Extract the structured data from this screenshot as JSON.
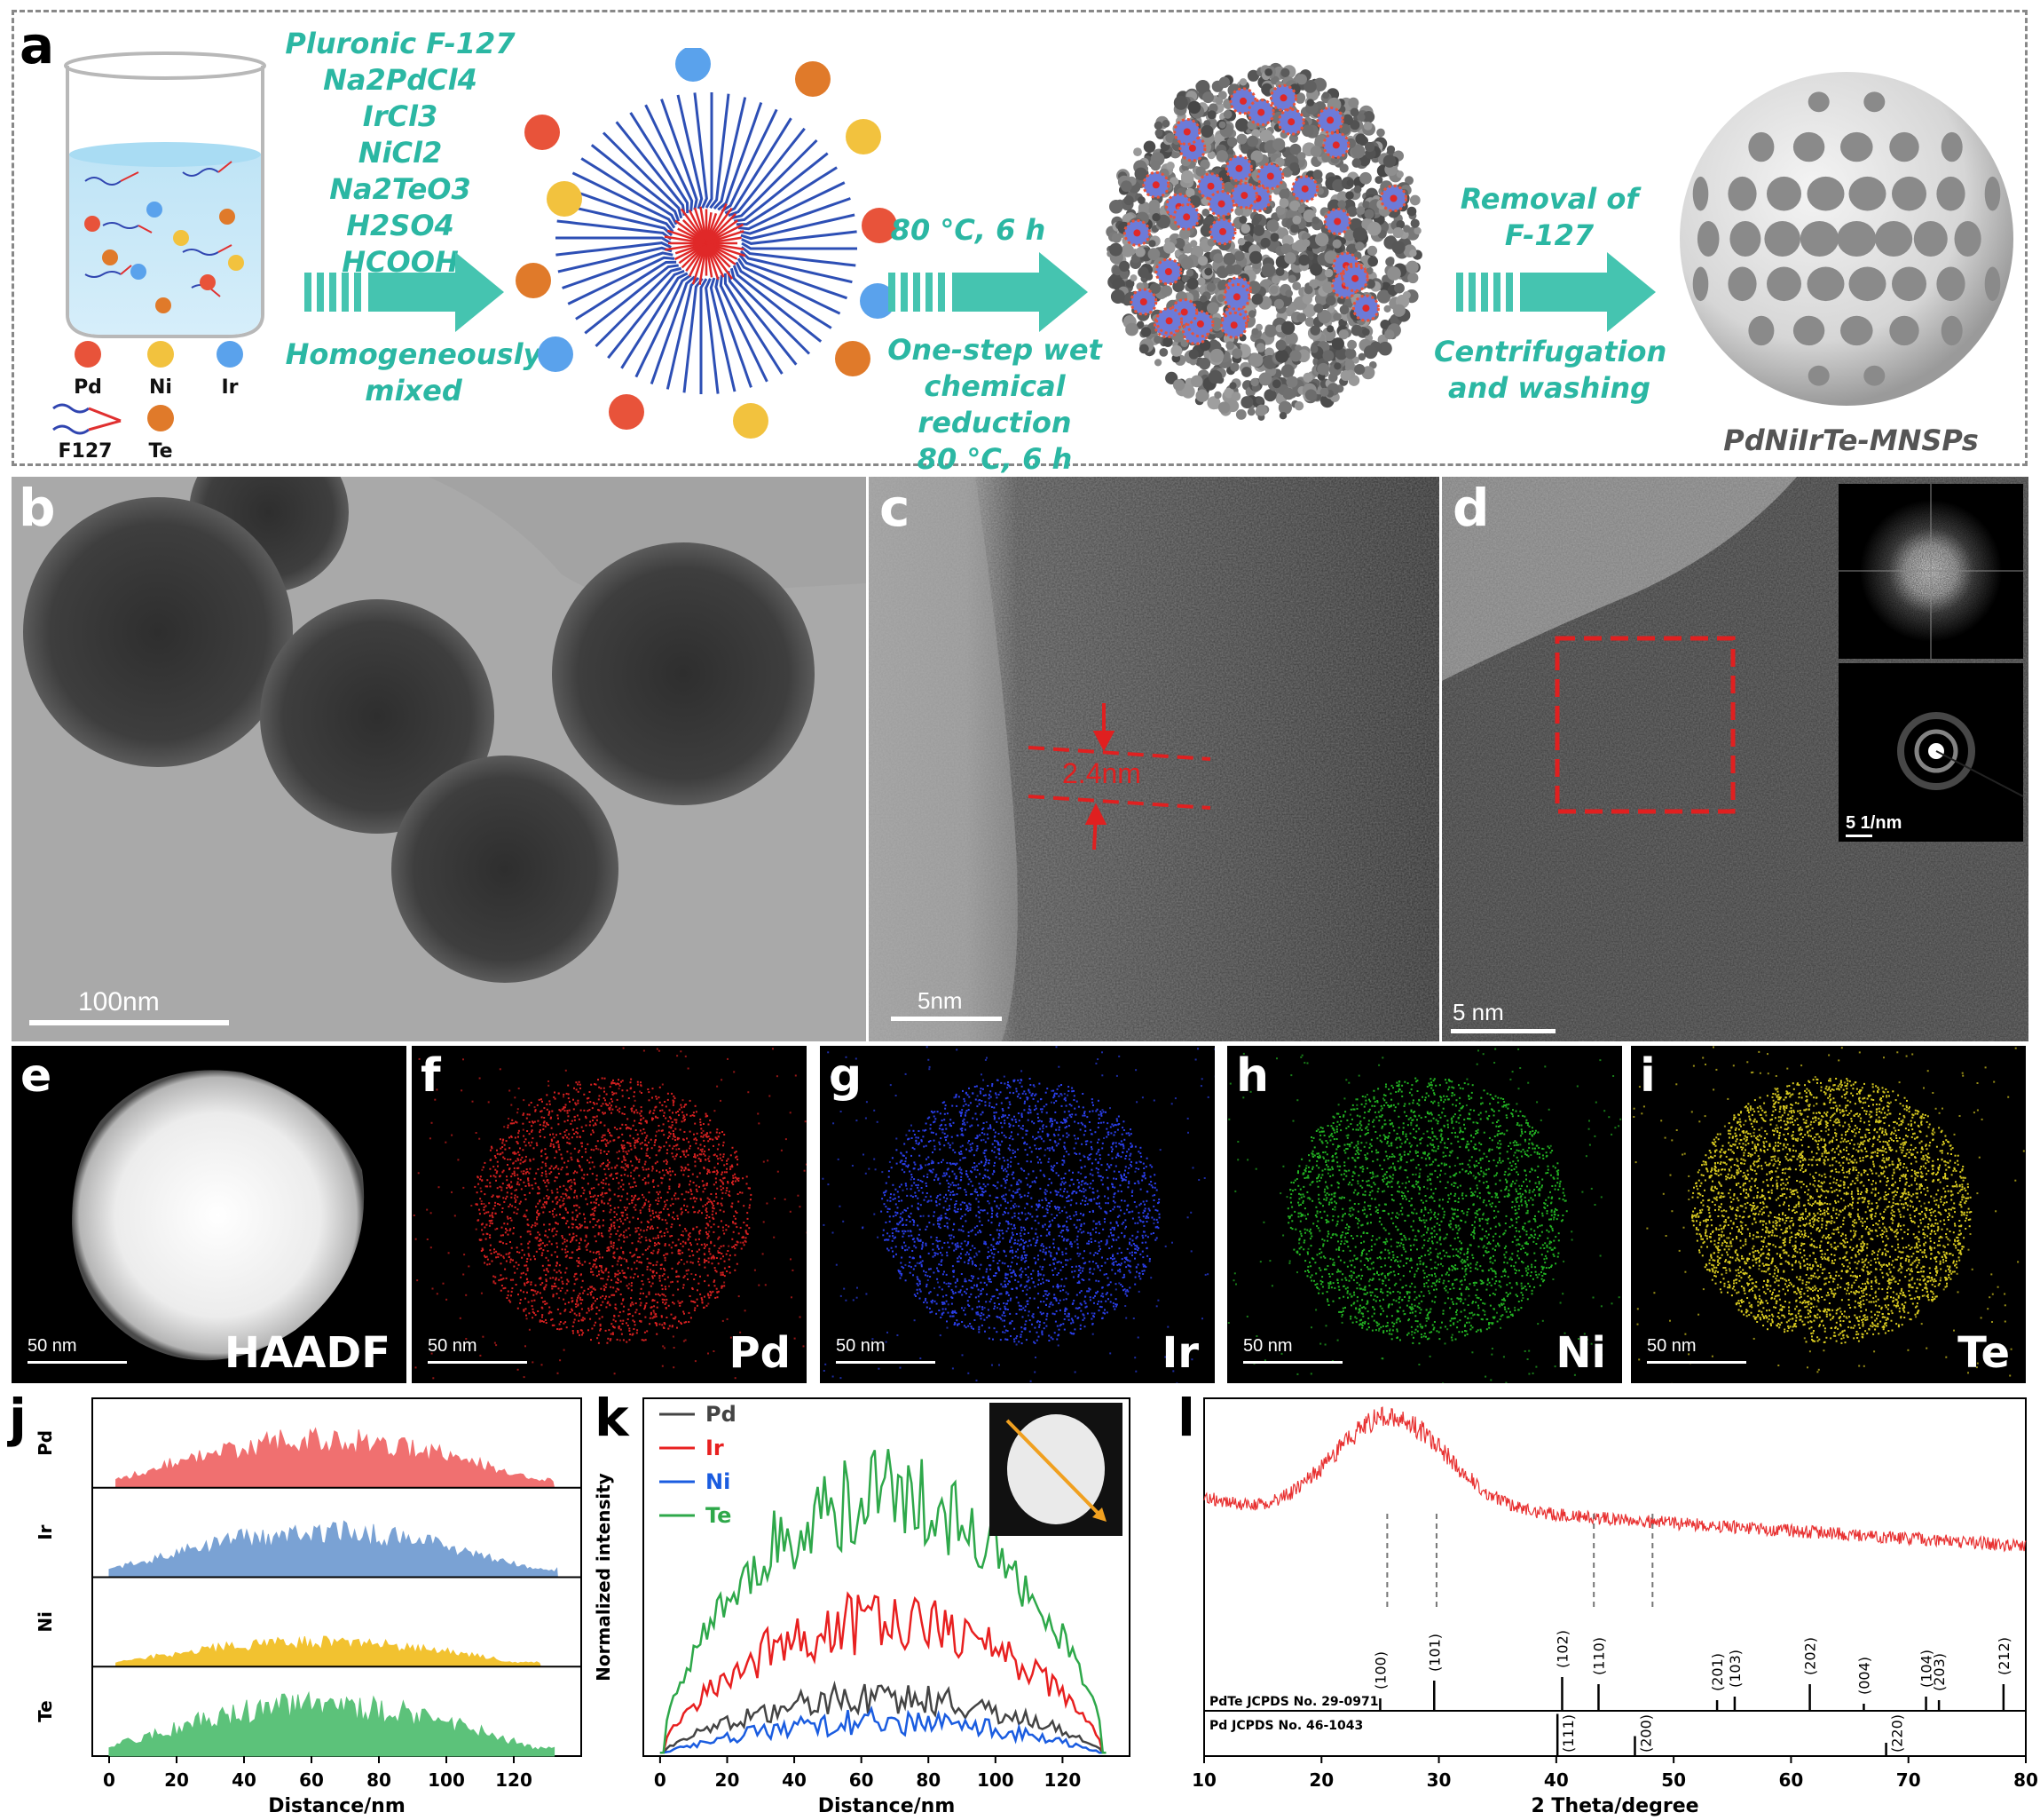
{
  "panel_a": {
    "label": "a",
    "reagents": [
      "Pluronic F-127",
      "Na2PdCl4",
      "IrCl3",
      "NiCl2",
      "Na2TeO3",
      "H2SO4",
      "HCOOH"
    ],
    "step1": "Homogeneously mixed",
    "step2_top": "80 °C, 6 h",
    "step2_bottom": [
      "One-step wet",
      "chemical reduction",
      "80 °C, 6 h"
    ],
    "step3_top": [
      "Removal of",
      "F-127"
    ],
    "step3_bottom": [
      "Centrifugation",
      "and washing"
    ],
    "product": "PdNiIrTe-MNSPs",
    "legend": [
      "Pd",
      "Ni",
      "Ir",
      "F127",
      "Te"
    ],
    "colors": {
      "pd": "#e8533a",
      "ni": "#f2c23e",
      "ir": "#5aa2ec",
      "te": "#e07a2a",
      "teal": "#2bb7a3"
    }
  },
  "panel_b": {
    "label": "b",
    "scale": "100nm"
  },
  "panel_c": {
    "label": "c",
    "scale": "5nm",
    "annotation": "2.4nm"
  },
  "panel_d": {
    "label": "d",
    "scale": "5 nm",
    "inset_scale": "5 1/nm"
  },
  "eds": [
    {
      "label": "e",
      "element": "HAADF",
      "scale": "50 nm",
      "color": "#ffffff"
    },
    {
      "label": "f",
      "element": "Pd",
      "scale": "50 nm",
      "color": "#d42020"
    },
    {
      "label": "g",
      "element": "Ir",
      "scale": "50 nm",
      "color": "#2a3ee8"
    },
    {
      "label": "h",
      "element": "Ni",
      "scale": "50 nm",
      "color": "#22b022"
    },
    {
      "label": "i",
      "element": "Te",
      "scale": "50 nm",
      "color": "#d6c820"
    }
  ],
  "chart_data": [
    {
      "panel": "j",
      "type": "area",
      "xlabel": "Distance/nm",
      "xticks": [
        0,
        20,
        40,
        60,
        80,
        100,
        120
      ],
      "xlim": [
        -5,
        140
      ],
      "series": [
        {
          "name": "Pd",
          "color": "#f07070",
          "start": 2,
          "end": 132,
          "peak": 0.8
        },
        {
          "name": "Ir",
          "color": "#7aa2d4",
          "start": 0,
          "end": 133,
          "peak": 0.75
        },
        {
          "name": "Ni",
          "color": "#f2c230",
          "start": 2,
          "end": 128,
          "peak": 0.4
        },
        {
          "name": "Te",
          "color": "#5cc27a",
          "start": 0,
          "end": 132,
          "peak": 0.85
        }
      ]
    },
    {
      "panel": "k",
      "type": "line",
      "xlabel": "Distance/nm",
      "ylabel": "Normalized intensity",
      "xticks": [
        0,
        20,
        40,
        60,
        80,
        100,
        120
      ],
      "xlim": [
        -5,
        140
      ],
      "series": [
        {
          "name": "Pd",
          "color": "#444444",
          "base": 0.12,
          "amp": 0.1
        },
        {
          "name": "Ir",
          "color": "#e82020",
          "base": 0.3,
          "amp": 0.2
        },
        {
          "name": "Ni",
          "color": "#1a5ce0",
          "base": 0.06,
          "amp": 0.08
        },
        {
          "name": "Te",
          "color": "#2ea84a",
          "base": 0.62,
          "amp": 0.3
        }
      ]
    },
    {
      "panel": "l",
      "type": "line",
      "xlabel": "2 Theta/degree",
      "xticks": [
        10,
        20,
        30,
        40,
        50,
        60,
        70,
        80
      ],
      "xlim": [
        10,
        80
      ],
      "series": [
        {
          "name": "",
          "color": "#e83030"
        }
      ],
      "references": [
        {
          "name": "PdTe JCPDS No. 29-0971",
          "peaks": [
            {
              "x": 25.0,
              "hkl": "(100)",
              "h": 0.35
            },
            {
              "x": 29.6,
              "hkl": "(101)",
              "h": 0.85
            },
            {
              "x": 40.5,
              "hkl": "(102)",
              "h": 0.95
            },
            {
              "x": 43.6,
              "hkl": "(110)",
              "h": 0.75
            },
            {
              "x": 53.7,
              "hkl": "(201)",
              "h": 0.3
            },
            {
              "x": 55.2,
              "hkl": "(103)",
              "h": 0.4
            },
            {
              "x": 61.6,
              "hkl": "(202)",
              "h": 0.75
            },
            {
              "x": 66.2,
              "hkl": "(004)",
              "h": 0.2
            },
            {
              "x": 71.5,
              "hkl": "(104)",
              "h": 0.4
            },
            {
              "x": 72.6,
              "hkl": "(203)",
              "h": 0.3
            },
            {
              "x": 78.1,
              "hkl": "(212)",
              "h": 0.75
            }
          ]
        },
        {
          "name": "Pd JCPDS No. 46-1043",
          "peaks": [
            {
              "x": 40.1,
              "hkl": "(111)",
              "h": 0.95
            },
            {
              "x": 46.7,
              "hkl": "(200)",
              "h": 0.45
            },
            {
              "x": 68.1,
              "hkl": "(220)",
              "h": 0.3
            }
          ]
        }
      ],
      "dashed_lines": [
        25.6,
        29.8,
        43.2,
        48.2
      ]
    }
  ]
}
